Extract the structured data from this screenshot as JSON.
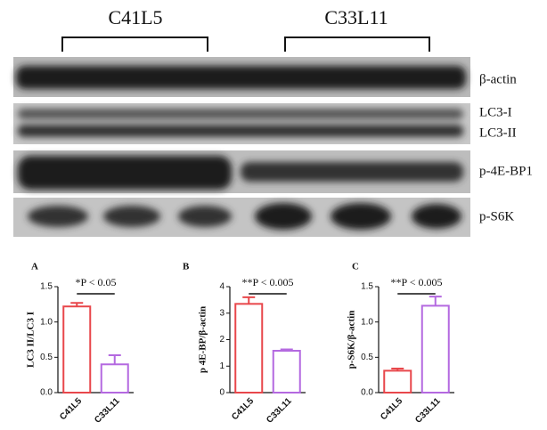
{
  "blot": {
    "groups": [
      "C41L5",
      "C33L11"
    ],
    "rows": [
      "β-actin",
      "LC3-I",
      "LC3-II",
      "p-4E-BP1",
      "p-S6K"
    ]
  },
  "chart_data": [
    {
      "type": "bar",
      "panel": "A",
      "y_label": "LC3 II/LC3 I",
      "annotation": "*P < 0.05",
      "categories": [
        "C41L5",
        "C33L11"
      ],
      "values": [
        1.22,
        0.4
      ],
      "errors": [
        0.05,
        0.13
      ],
      "colors": [
        "#e8474b",
        "#b469e0"
      ],
      "ylim": [
        0,
        1.5
      ],
      "yticks": [
        {
          "value": 0,
          "label": "0.0"
        },
        {
          "value": 0.5,
          "label": "0.5"
        },
        {
          "value": 1,
          "label": "1.0"
        },
        {
          "value": 1.5,
          "label": "1.5"
        }
      ]
    },
    {
      "type": "bar",
      "panel": "B",
      "y_label": "p 4E-BP/β-actin",
      "annotation": "**P < 0.005",
      "categories": [
        "C41L5",
        "C33L11"
      ],
      "values": [
        3.35,
        1.58
      ],
      "errors": [
        0.25,
        0.05
      ],
      "colors": [
        "#e8474b",
        "#b469e0"
      ],
      "ylim": [
        0,
        4
      ],
      "yticks": [
        0,
        1,
        2,
        3,
        4
      ]
    },
    {
      "type": "bar",
      "panel": "C",
      "y_label": "p-S6K/β-actin",
      "annotation": "**P < 0.005",
      "categories": [
        "C41L5",
        "C33L11"
      ],
      "values": [
        0.31,
        1.23
      ],
      "errors": [
        0.03,
        0.13
      ],
      "colors": [
        "#e8474b",
        "#b469e0"
      ],
      "ylim": [
        0,
        1.5
      ],
      "yticks": [
        {
          "value": 0,
          "label": "0.0"
        },
        {
          "value": 0.5,
          "label": "0.5"
        },
        {
          "value": 1,
          "label": "1.0"
        },
        {
          "value": 1.5,
          "label": "1.5"
        }
      ]
    }
  ]
}
